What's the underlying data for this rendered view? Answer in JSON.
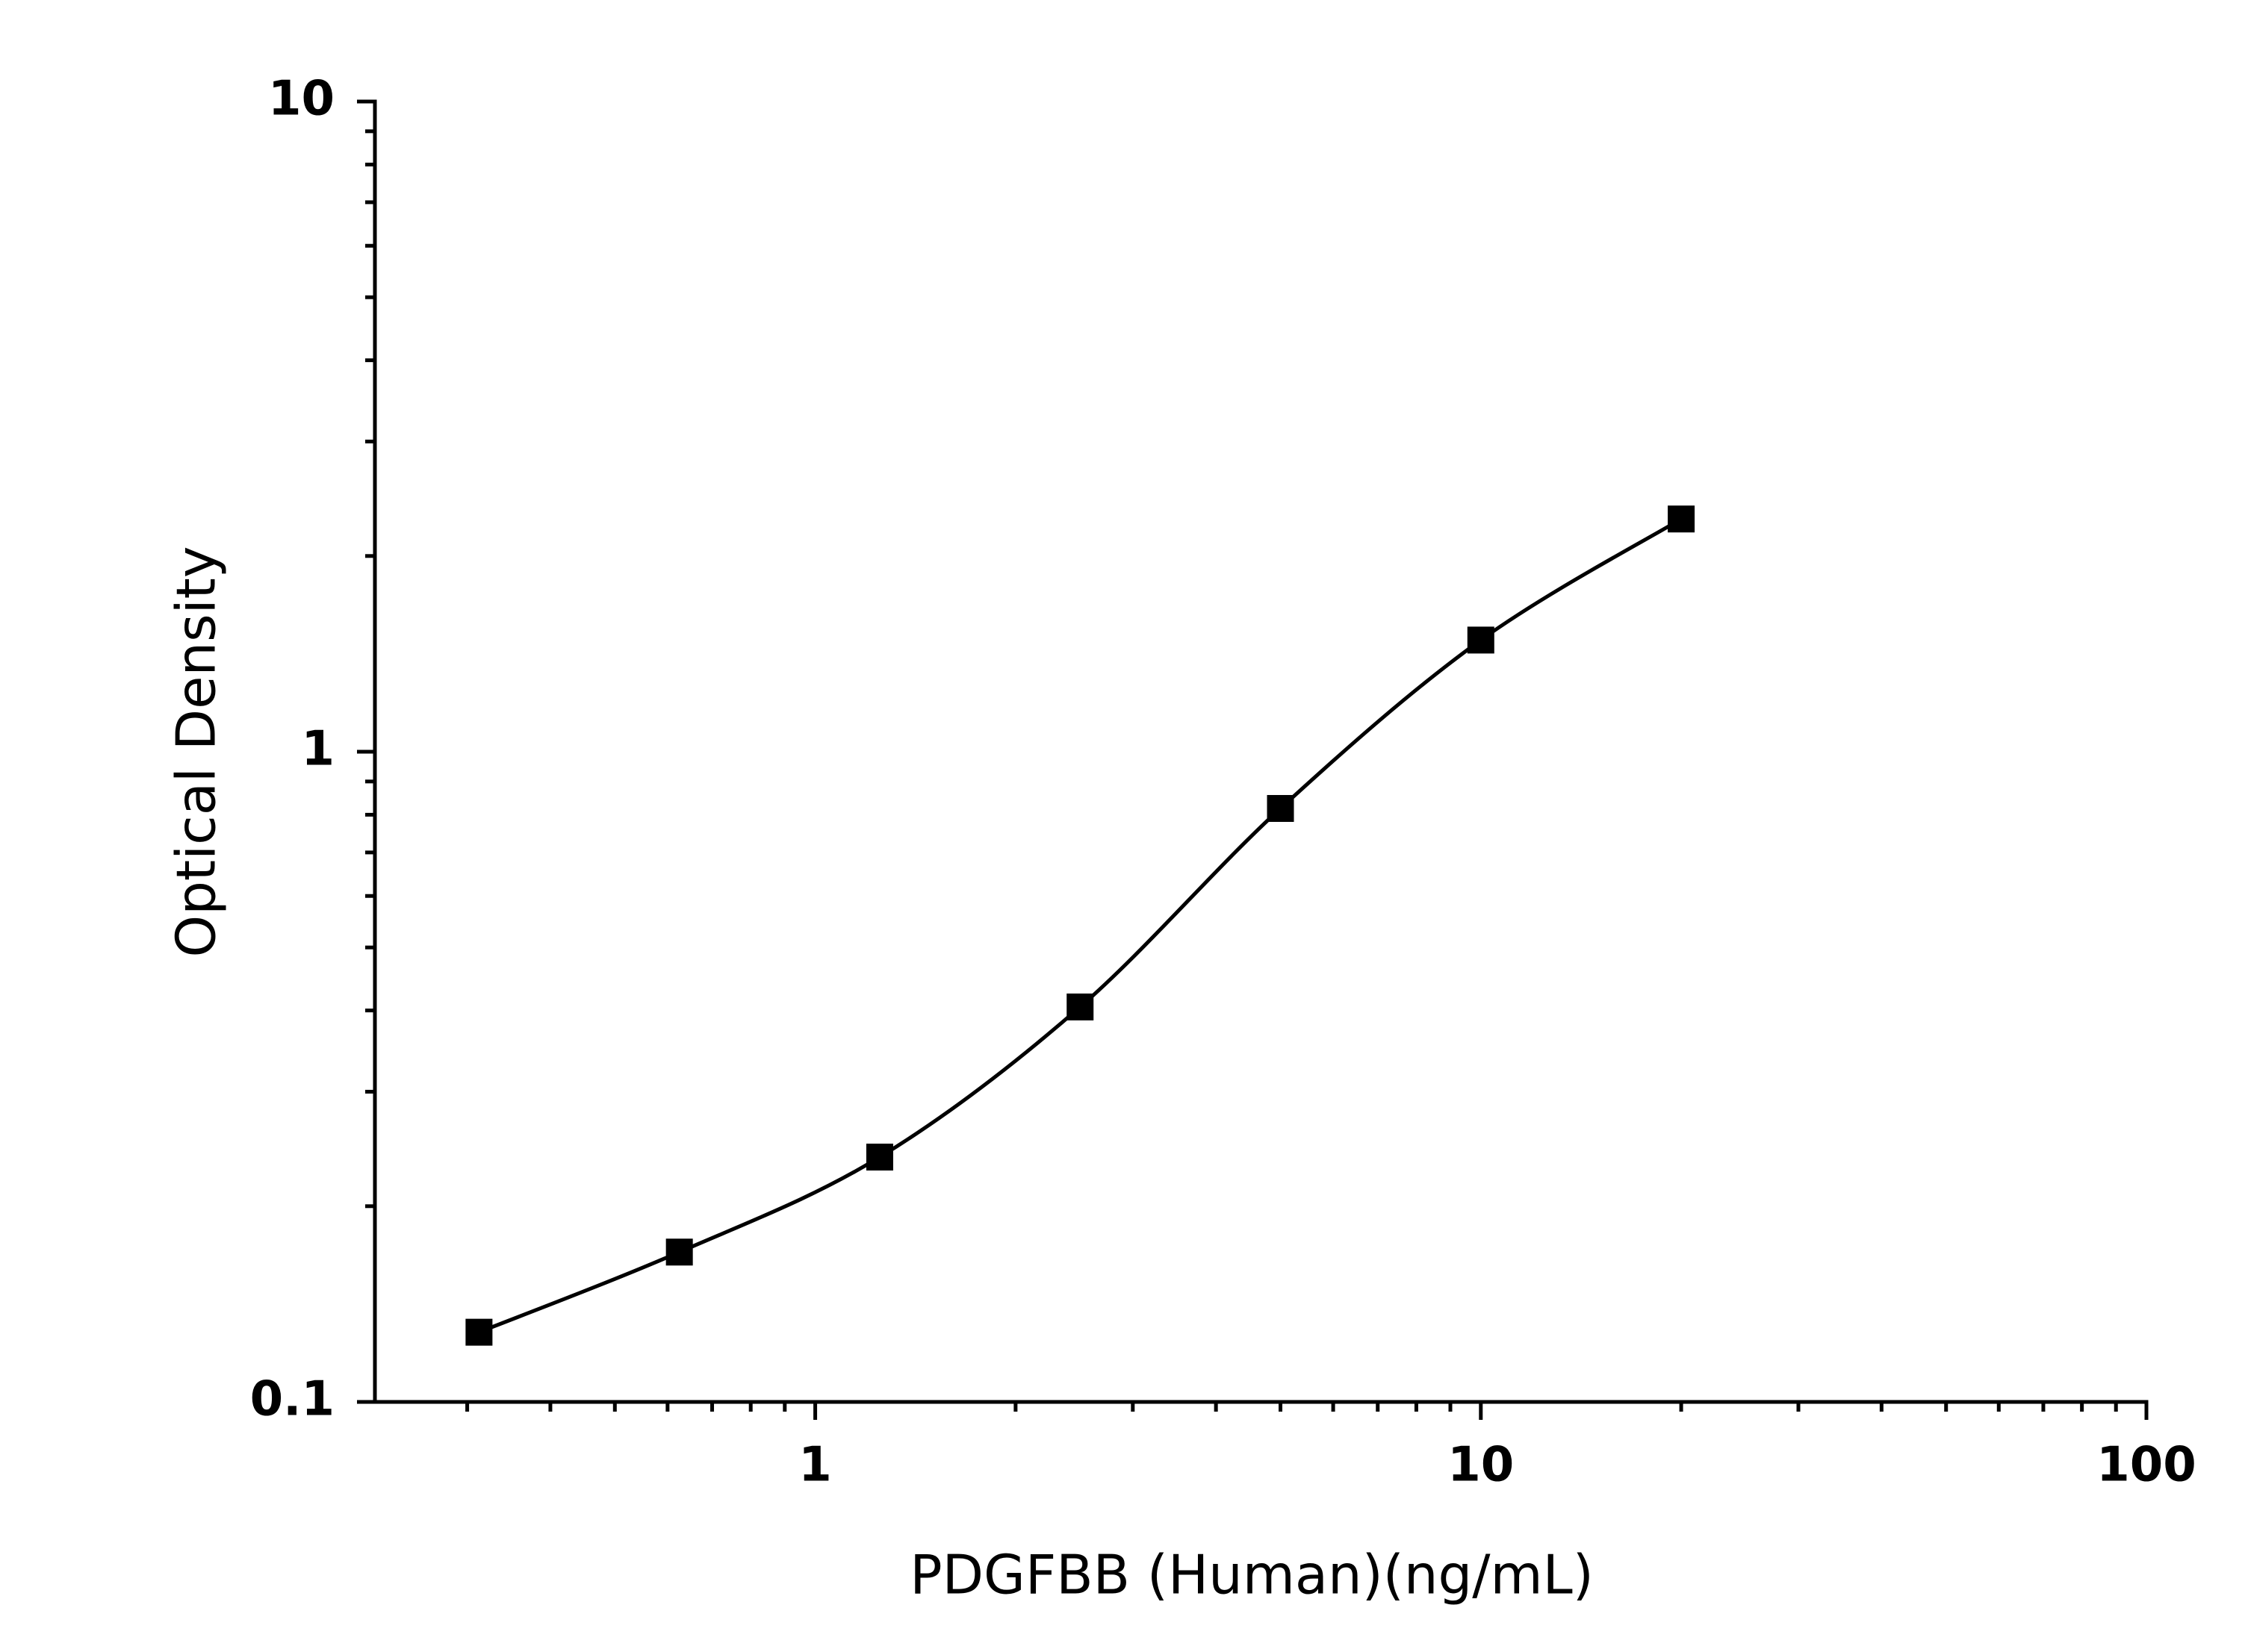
{
  "chart_data": {
    "type": "scatter",
    "curve": true,
    "x_label": "PDGFBB (Human)(ng/mL)",
    "y_label": "Optical Density",
    "x": [
      0.3125,
      0.625,
      1.25,
      2.5,
      5,
      10,
      20
    ],
    "values": [
      0.128,
      0.17,
      0.238,
      0.405,
      0.818,
      1.485,
      2.28
    ],
    "color": "#000000",
    "marker": "square",
    "x_log": true,
    "y_log": true,
    "xlim": [
      0.218,
      100
    ],
    "ylim": [
      0.1,
      10
    ],
    "xticks": [
      1,
      10,
      100
    ],
    "yticks": [
      0.1,
      1,
      10
    ],
    "xminorticks": [
      0.3,
      0.4,
      0.5,
      0.6,
      0.7,
      0.8,
      0.9,
      2,
      3,
      4,
      5,
      6,
      7,
      8,
      9,
      20,
      30,
      40,
      50,
      60,
      70,
      80,
      90
    ],
    "yminorticks": [
      0.2,
      0.3,
      0.4,
      0.5,
      0.6,
      0.7,
      0.8,
      0.9,
      2,
      3,
      4,
      5,
      6,
      7,
      8,
      9
    ]
  }
}
